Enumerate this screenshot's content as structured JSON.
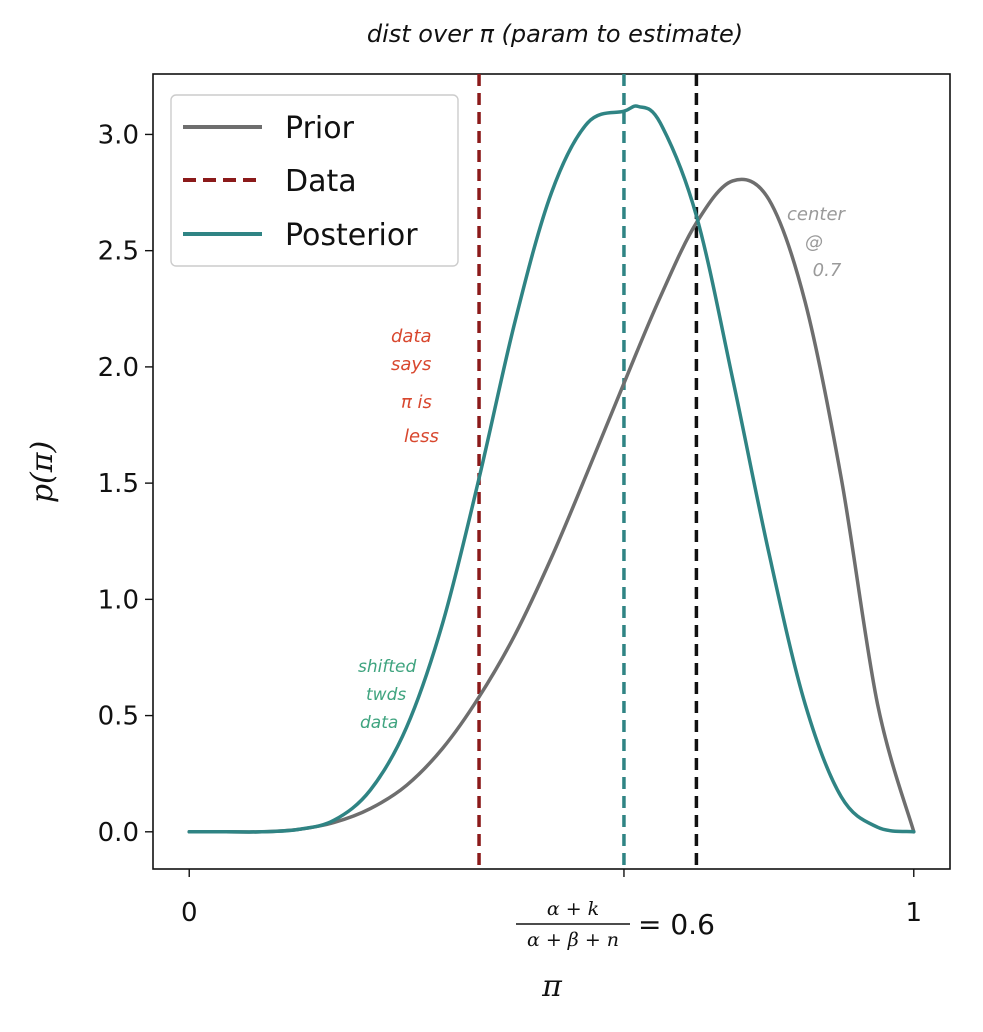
{
  "chart_data": {
    "type": "line",
    "title": "dist over π (param to estimate)",
    "xlabel": "π",
    "ylabel": "p(π)",
    "xlim": [
      -0.05,
      1.05
    ],
    "ylim": [
      -0.16,
      3.26
    ],
    "yticks": [
      0.0,
      0.5,
      1.0,
      1.5,
      2.0,
      2.5,
      3.0
    ],
    "ytick_labels": [
      "0.0",
      "0.5",
      "1.0",
      "1.5",
      "2.0",
      "2.5",
      "3.0"
    ],
    "xticks": [
      0,
      0.6,
      1
    ],
    "xtick_labels": [
      "0",
      "",
      "1"
    ],
    "xtick_formula": {
      "numerator": "α + k",
      "denominator": "α + β + n",
      "value_text": "= 0.6"
    },
    "grid": false,
    "legend_position": "top-left",
    "legend": [
      "Prior",
      "Data",
      "Posterior"
    ],
    "series": [
      {
        "name": "Prior",
        "style": "solid",
        "color": "#6e6e6e",
        "x": [
          0,
          0.05,
          0.1,
          0.15,
          0.2,
          0.25,
          0.3,
          0.35,
          0.4,
          0.45,
          0.5,
          0.55,
          0.6,
          0.65,
          0.7,
          0.75,
          0.8,
          0.85,
          0.9,
          0.95,
          1.0
        ],
        "y": [
          0,
          0,
          0,
          0.01,
          0.04,
          0.1,
          0.2,
          0.36,
          0.58,
          0.85,
          1.18,
          1.55,
          1.93,
          2.3,
          2.62,
          2.8,
          2.72,
          2.28,
          1.52,
          0.55,
          0
        ]
      },
      {
        "name": "Posterior",
        "style": "solid",
        "color": "#2f8484",
        "x": [
          0,
          0.05,
          0.1,
          0.15,
          0.2,
          0.25,
          0.3,
          0.35,
          0.4,
          0.45,
          0.5,
          0.55,
          0.6,
          0.62,
          0.65,
          0.7,
          0.75,
          0.8,
          0.85,
          0.9,
          0.95,
          1.0
        ],
        "y": [
          0,
          0,
          0,
          0.01,
          0.05,
          0.18,
          0.45,
          0.9,
          1.52,
          2.2,
          2.75,
          3.05,
          3.1,
          3.12,
          3.05,
          2.65,
          1.95,
          1.2,
          0.55,
          0.15,
          0.02,
          0
        ]
      }
    ],
    "vlines": [
      {
        "name": "Data",
        "x": 0.4,
        "style": "dashed",
        "color": "#8b1a1a"
      },
      {
        "name": "posterior-mean",
        "x": 0.6,
        "style": "dashed",
        "color": "#2f8484"
      },
      {
        "name": "prior-center",
        "x": 0.7,
        "style": "dashed",
        "color": "#111111"
      }
    ],
    "annotations": {
      "center": {
        "lines": [
          "center",
          "@",
          "0.7"
        ],
        "color": "#9a9a9a"
      },
      "data_says": {
        "lines": [
          "data",
          "says",
          "π is",
          "less"
        ],
        "color": "#d8472e"
      },
      "shifted": {
        "lines": [
          "shifted",
          "twds",
          "data"
        ],
        "color": "#3fa47f"
      }
    }
  }
}
